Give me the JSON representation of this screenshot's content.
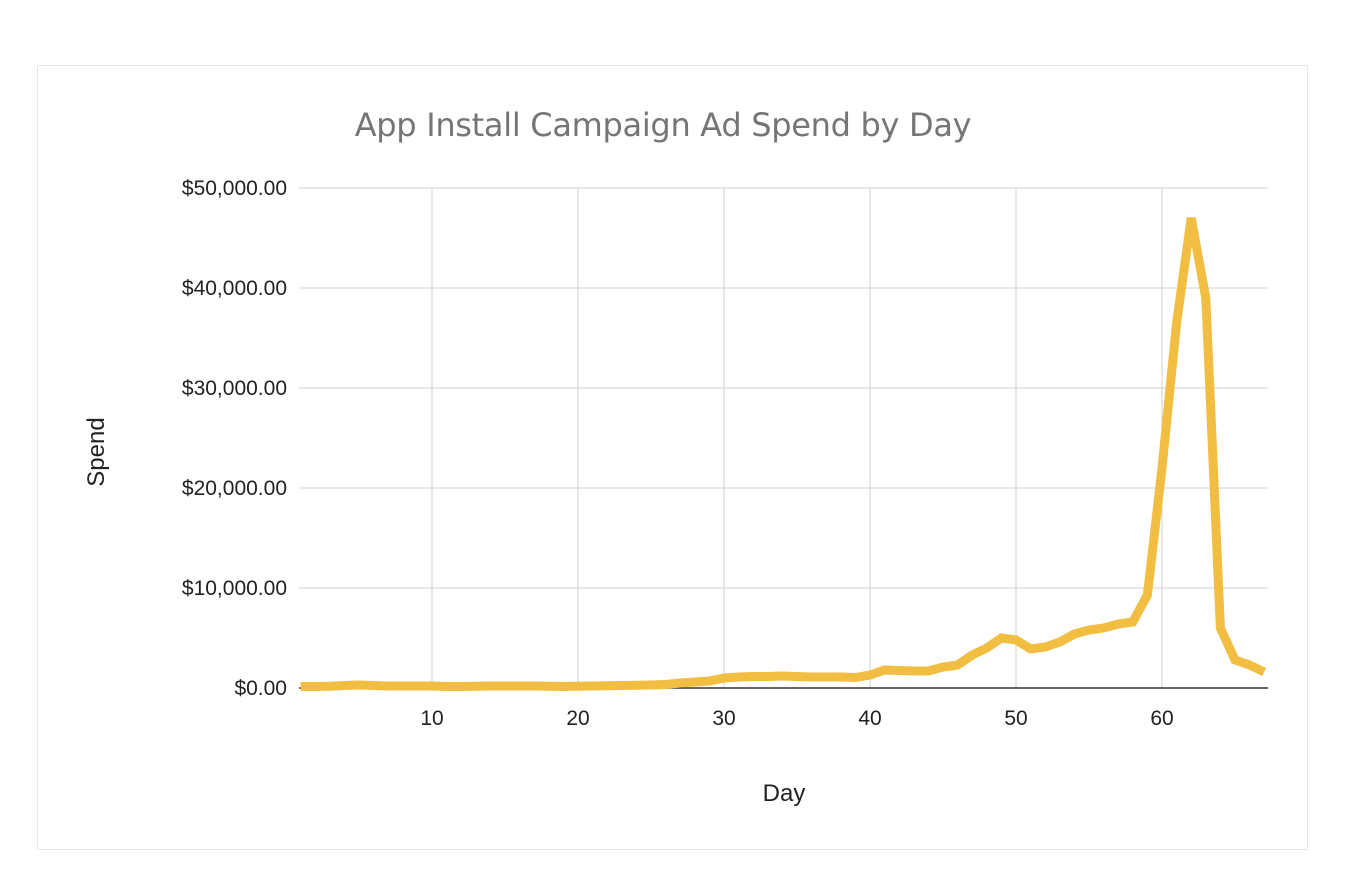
{
  "chart_data": {
    "type": "line",
    "title": "App Install Campaign Ad Spend by Day",
    "xlabel": "Day",
    "ylabel": "Spend",
    "xlim": [
      1,
      67
    ],
    "ylim": [
      0,
      50000
    ],
    "grid": true,
    "legend": "none",
    "line_color": "#f1be42",
    "x_ticks": [
      10,
      20,
      30,
      40,
      50,
      60
    ],
    "y_ticks": [
      0,
      10000,
      20000,
      30000,
      40000,
      50000
    ],
    "y_tick_labels": [
      "$0.00",
      "$10,000.00",
      "$20,000.00",
      "$30,000.00",
      "$40,000.00",
      "$50,000.00"
    ],
    "x_tick_labels": [
      "10",
      "20",
      "30",
      "40",
      "50",
      "60"
    ],
    "series": [
      {
        "name": "Spend",
        "x": [
          1,
          2,
          3,
          4,
          5,
          6,
          7,
          8,
          9,
          10,
          11,
          12,
          13,
          14,
          15,
          16,
          17,
          18,
          19,
          20,
          21,
          22,
          23,
          24,
          25,
          26,
          27,
          28,
          29,
          30,
          31,
          32,
          33,
          34,
          35,
          36,
          37,
          38,
          39,
          40,
          41,
          42,
          43,
          44,
          45,
          46,
          47,
          48,
          49,
          50,
          51,
          52,
          53,
          54,
          55,
          56,
          57,
          58,
          59,
          60,
          61,
          62,
          63,
          64,
          65,
          66,
          67
        ],
        "values": [
          150,
          150,
          180,
          250,
          300,
          250,
          200,
          200,
          200,
          200,
          150,
          150,
          180,
          200,
          200,
          200,
          200,
          180,
          150,
          180,
          200,
          230,
          250,
          280,
          300,
          350,
          500,
          600,
          700,
          1000,
          1100,
          1150,
          1150,
          1200,
          1150,
          1100,
          1100,
          1100,
          1050,
          1300,
          1800,
          1750,
          1700,
          1700,
          2100,
          2300,
          3300,
          4000,
          5000,
          4800,
          3900,
          4100,
          4600,
          5400,
          5800,
          6000,
          6400,
          6600,
          9300,
          22000,
          36500,
          47000,
          39000,
          6000,
          2800,
          2300,
          1600
        ]
      }
    ]
  },
  "labels": {
    "title": "App Install Campaign Ad Spend by Day",
    "xlabel": "Day",
    "ylabel": "Spend"
  }
}
